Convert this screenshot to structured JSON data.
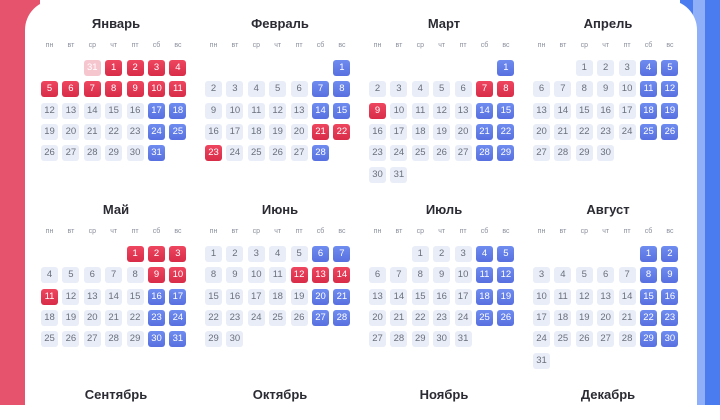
{
  "weekdays": [
    "пн",
    "вт",
    "ср",
    "чт",
    "пт",
    "сб",
    "вс"
  ],
  "colors": {
    "holiday": "#e23a55",
    "weekend": "#5d78e6",
    "workday": "#e8edf8",
    "left_bar": "#e6536c",
    "right_bar": "#4a7cf0"
  },
  "months": [
    {
      "name": "Январь",
      "offset": 3,
      "days": 31,
      "prev_day": "31",
      "holidays": [
        1,
        2,
        3,
        4,
        5,
        6,
        7,
        8,
        9,
        10,
        11
      ],
      "weekends": [
        17,
        18,
        24,
        25,
        31
      ]
    },
    {
      "name": "Февраль",
      "offset": 6,
      "days": 28,
      "holidays": [
        21,
        22,
        23
      ],
      "weekends": [
        1,
        7,
        8,
        14,
        15,
        28
      ]
    },
    {
      "name": "Март",
      "offset": 6,
      "days": 31,
      "holidays": [
        7,
        8,
        9
      ],
      "weekends": [
        1,
        14,
        15,
        21,
        22,
        28,
        29
      ]
    },
    {
      "name": "Апрель",
      "offset": 2,
      "days": 30,
      "holidays": [],
      "weekends": [
        4,
        5,
        11,
        12,
        18,
        19,
        25,
        26
      ]
    },
    {
      "name": "Май",
      "offset": 4,
      "days": 31,
      "holidays": [
        1,
        2,
        3,
        9,
        10,
        11
      ],
      "weekends": [
        16,
        17,
        23,
        24,
        30,
        31
      ]
    },
    {
      "name": "Июнь",
      "offset": 0,
      "days": 30,
      "holidays": [
        12,
        13,
        14
      ],
      "weekends": [
        6,
        7,
        20,
        21,
        27,
        28
      ]
    },
    {
      "name": "Июль",
      "offset": 2,
      "days": 31,
      "holidays": [],
      "weekends": [
        4,
        5,
        11,
        12,
        18,
        19,
        25,
        26
      ]
    },
    {
      "name": "Август",
      "offset": 5,
      "days": 31,
      "holidays": [],
      "weekends": [
        1,
        2,
        8,
        9,
        15,
        16,
        22,
        23,
        29,
        30
      ]
    },
    {
      "name": "Сентябрь"
    },
    {
      "name": "Октябрь"
    },
    {
      "name": "Ноябрь"
    },
    {
      "name": "Декабрь"
    }
  ]
}
